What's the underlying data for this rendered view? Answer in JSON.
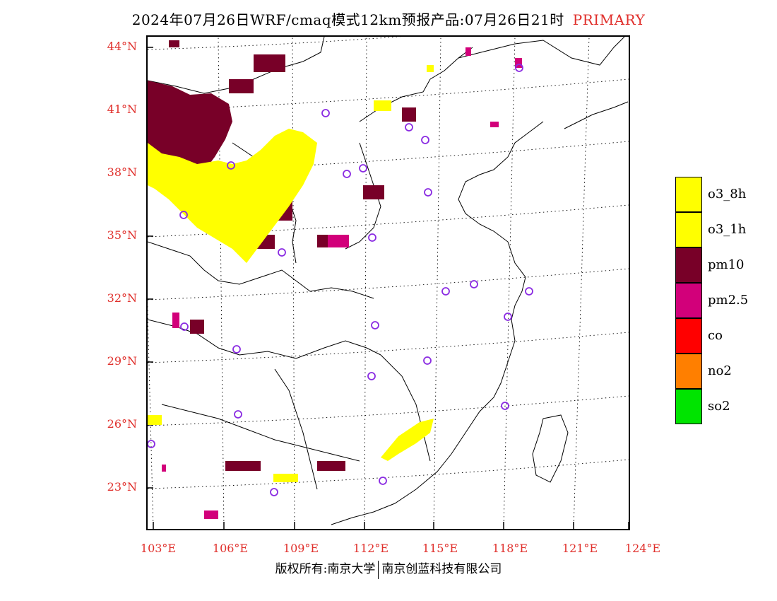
{
  "title": {
    "main": "2024年07月26日WRF/cmaq模式12km预报产品:07月26日21时",
    "tag": "PRIMARY"
  },
  "axes": {
    "lat_labels": [
      "44°N",
      "41°N",
      "38°N",
      "35°N",
      "32°N",
      "29°N",
      "26°N",
      "23°N"
    ],
    "lon_labels": [
      "103°E",
      "106°E",
      "109°E",
      "112°E",
      "115°E",
      "118°E",
      "121°E",
      "124°E"
    ]
  },
  "legend": {
    "items": [
      {
        "label": "o3_8h",
        "color": "#ffff00"
      },
      {
        "label": "o3_1h",
        "color": "#ffff00"
      },
      {
        "label": "pm10",
        "color": "#780028"
      },
      {
        "label": "pm2.5",
        "color": "#d2007a"
      },
      {
        "label": "co",
        "color": "#ff0000"
      },
      {
        "label": "no2",
        "color": "#ff7f00"
      },
      {
        "label": "so2",
        "color": "#00e400"
      }
    ]
  },
  "colors": {
    "label_red": "#e0302c",
    "station_marker": "#8a2be2"
  },
  "footer": {
    "left": "版权所有:南京大学",
    "right": "南京创蓝科技有限公司"
  }
}
